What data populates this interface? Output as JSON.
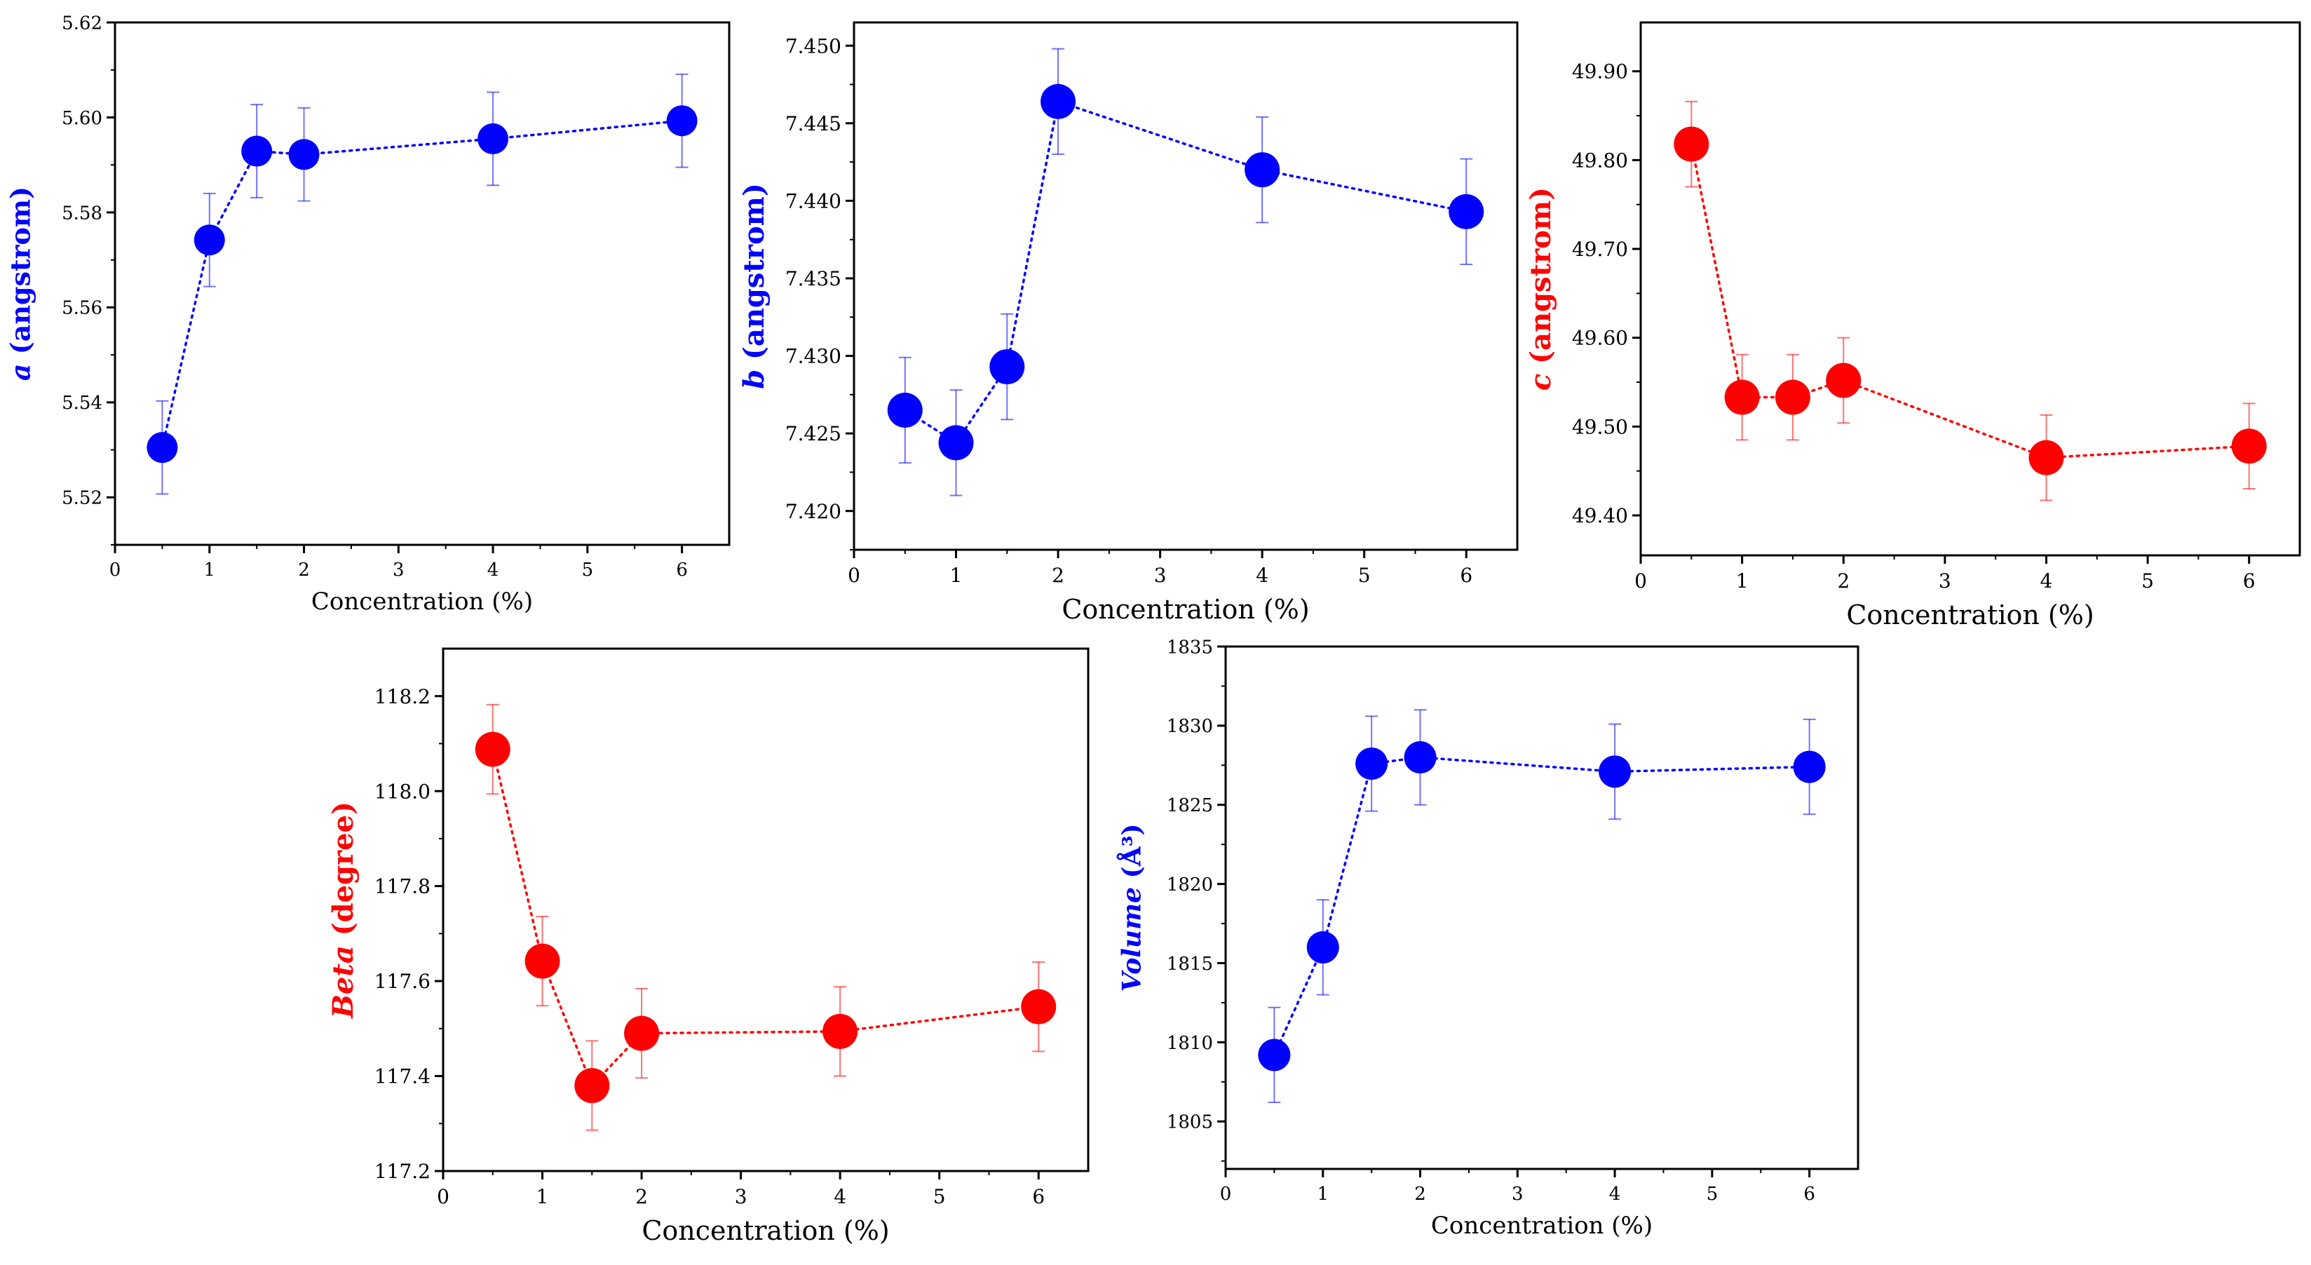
{
  "chart_data": [
    {
      "type": "scatter",
      "id": "a",
      "color": "#0000ff",
      "ylabel_var": "a",
      "ylabel_rest": " (angstrom)",
      "xlabel": "Concentration (%)",
      "xlim": [
        0,
        6.5
      ],
      "ylim": [
        5.51,
        5.62
      ],
      "xticks": [
        0,
        1,
        2,
        3,
        4,
        5,
        6
      ],
      "xtick_labels": [
        "0",
        "1",
        "2",
        "3",
        "4",
        "5",
        "6"
      ],
      "yticks": [
        5.52,
        5.54,
        5.56,
        5.58,
        5.6,
        5.62
      ],
      "ytick_labels": [
        "5.52",
        "5.54",
        "5.56",
        "5.58",
        "5.60",
        "5.62"
      ],
      "x": [
        0.5,
        1,
        1.5,
        2,
        4,
        6
      ],
      "y": [
        5.5305,
        5.5742,
        5.5929,
        5.5922,
        5.5955,
        5.5993
      ],
      "err": [
        0.0098,
        0.0098,
        0.0098,
        0.0098,
        0.0098,
        0.0098
      ]
    },
    {
      "type": "scatter",
      "id": "b",
      "color": "#0000ff",
      "ylabel_var": "b",
      "ylabel_rest": " (angstrom)",
      "xlabel": "Concentration (%)",
      "xlim": [
        0,
        6.5
      ],
      "ylim": [
        7.4175,
        7.4515
      ],
      "xticks": [
        0,
        1,
        2,
        3,
        4,
        5,
        6
      ],
      "xtick_labels": [
        "0",
        "1",
        "2",
        "3",
        "4",
        "5",
        "6"
      ],
      "yticks": [
        7.42,
        7.425,
        7.43,
        7.435,
        7.44,
        7.445,
        7.45
      ],
      "ytick_labels": [
        "7.420",
        "7.425",
        "7.430",
        "7.435",
        "7.440",
        "7.445",
        "7.450"
      ],
      "x": [
        0.5,
        1,
        1.5,
        2,
        4,
        6
      ],
      "y": [
        7.4265,
        7.4244,
        7.4293,
        7.4464,
        7.442,
        7.4393
      ],
      "err": [
        0.0034,
        0.0034,
        0.0034,
        0.0034,
        0.0034,
        0.0034
      ]
    },
    {
      "type": "scatter",
      "id": "c",
      "color": "#ff0000",
      "ylabel_var": "c",
      "ylabel_rest": " (angstrom)",
      "xlabel": "Concentration (%)",
      "xlim": [
        0,
        6.5
      ],
      "ylim": [
        49.355,
        49.955
      ],
      "xticks": [
        0,
        1,
        2,
        3,
        4,
        5,
        6
      ],
      "xtick_labels": [
        "0",
        "1",
        "2",
        "3",
        "4",
        "5",
        "6"
      ],
      "yticks": [
        49.4,
        49.5,
        49.6,
        49.7,
        49.8,
        49.9
      ],
      "ytick_labels": [
        "49.40",
        "49.50",
        "49.60",
        "49.70",
        "49.80",
        "49.90"
      ],
      "x": [
        0.5,
        1,
        1.5,
        2,
        4,
        6
      ],
      "y": [
        49.818,
        49.533,
        49.533,
        49.552,
        49.465,
        49.478
      ],
      "err": [
        0.048,
        0.048,
        0.048,
        0.048,
        0.048,
        0.048
      ]
    },
    {
      "type": "scatter",
      "id": "beta",
      "color": "#ff0000",
      "ylabel_var": "Beta",
      "ylabel_rest": " (degree)",
      "xlabel": "Concentration (%)",
      "xlim": [
        0,
        6.5
      ],
      "ylim": [
        117.2,
        118.3
      ],
      "xticks": [
        0,
        1,
        2,
        3,
        4,
        5,
        6
      ],
      "xtick_labels": [
        "0",
        "1",
        "2",
        "3",
        "4",
        "5",
        "6"
      ],
      "yticks": [
        117.2,
        117.4,
        117.6,
        117.8,
        118.0,
        118.2
      ],
      "ytick_labels": [
        "117.2",
        "117.4",
        "117.6",
        "117.8",
        "118.0",
        "118.2"
      ],
      "x": [
        0.5,
        1,
        1.5,
        2,
        4,
        6
      ],
      "y": [
        118.088,
        117.642,
        117.38,
        117.49,
        117.494,
        117.546
      ],
      "err": [
        0.094,
        0.094,
        0.094,
        0.094,
        0.094,
        0.094
      ]
    },
    {
      "type": "scatter",
      "id": "volume",
      "color": "#0000ff",
      "ylabel_var": "Volume",
      "ylabel_rest": " (Å³)",
      "xlabel": "Concentration (%)",
      "xlim": [
        0,
        6.5
      ],
      "ylim": [
        1802,
        1835
      ],
      "xticks": [
        0,
        1,
        2,
        3,
        4,
        5,
        6
      ],
      "xtick_labels": [
        "0",
        "1",
        "2",
        "3",
        "4",
        "5",
        "6"
      ],
      "yticks": [
        1805,
        1810,
        1815,
        1820,
        1825,
        1830,
        1835
      ],
      "ytick_labels": [
        "1805",
        "1810",
        "1815",
        "1820",
        "1825",
        "1830",
        "1835"
      ],
      "x": [
        0.5,
        1,
        1.5,
        2,
        4,
        6
      ],
      "y": [
        1809.2,
        1816.0,
        1827.6,
        1828.0,
        1827.1,
        1827.4
      ],
      "err": [
        3.0,
        3.0,
        3.0,
        3.0,
        3.0,
        3.0
      ]
    }
  ]
}
